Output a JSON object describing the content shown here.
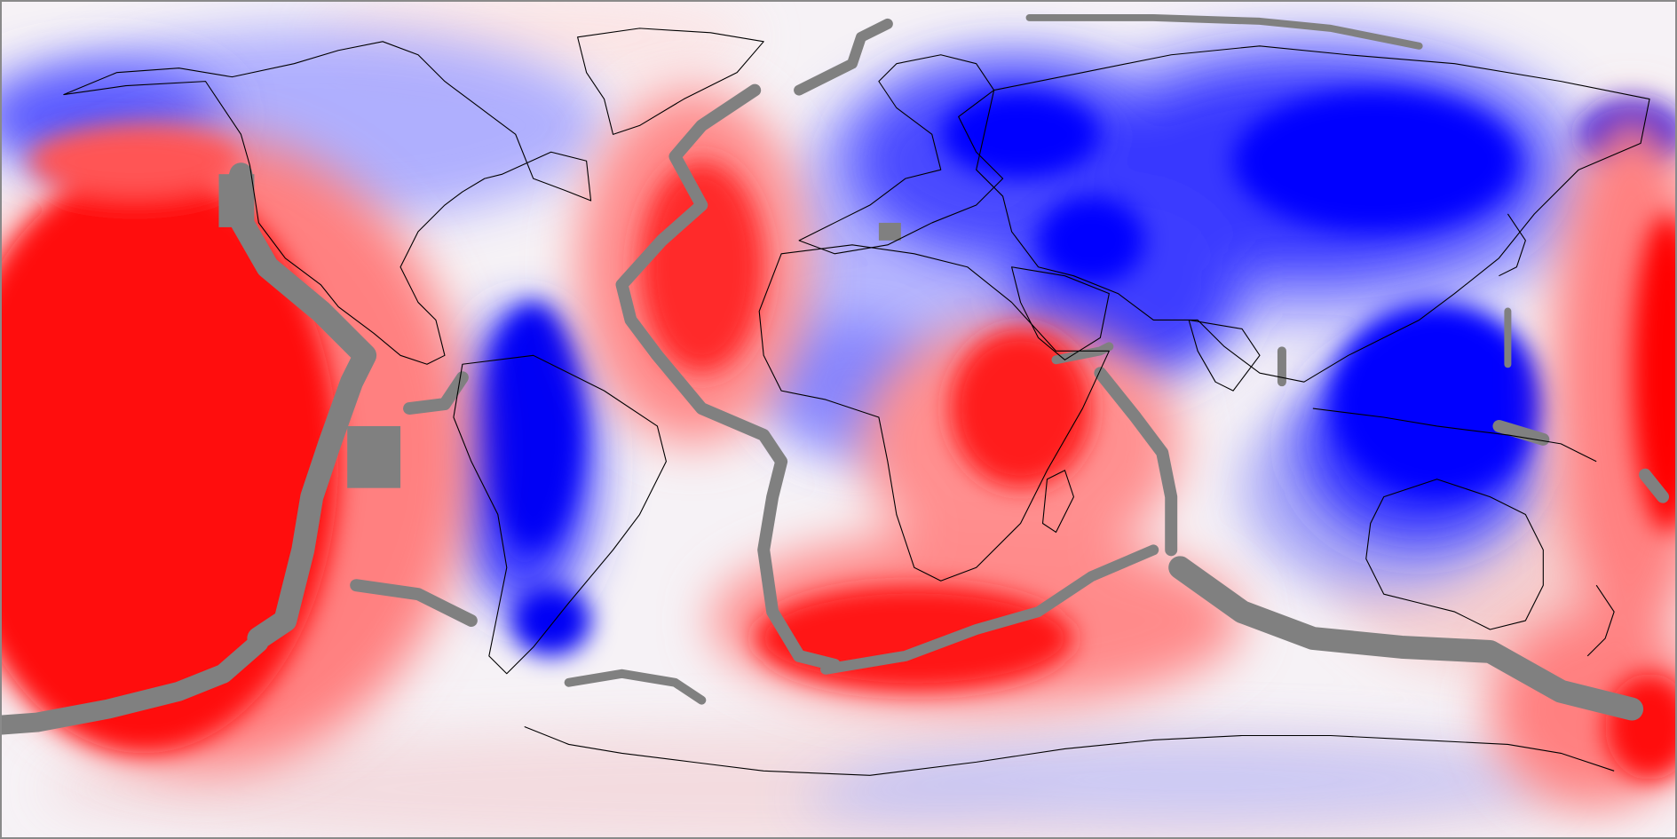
{
  "map": {
    "projection": "equirectangular",
    "colors": {
      "positive": "#ff0000",
      "negative": "#0000ff",
      "neutral": "#ffffff",
      "plate_boundary": "#808080",
      "coastline": "#000000"
    },
    "layers": [
      "anomaly-field",
      "plate-boundaries",
      "coastlines"
    ]
  }
}
